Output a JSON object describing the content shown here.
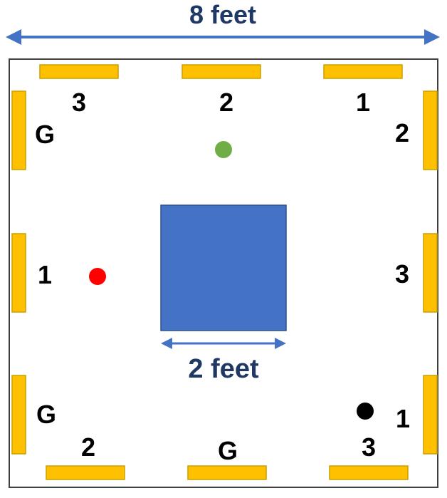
{
  "dimensions": {
    "room_width_label": "8 feet",
    "obstacle_width_label": "2 feet"
  },
  "colors": {
    "arrow": "#4472c4",
    "dimension_text": "#1f3864",
    "obstacle": "#4472c4",
    "bar_fill": "#ffc000",
    "bar_stroke": "#b8860b",
    "label_text": "#000000",
    "dot_green": "#70ad47",
    "dot_red": "#ff0000",
    "dot_black": "#000000"
  },
  "walls": {
    "top": [
      "3",
      "2",
      "1"
    ],
    "bottom": [
      "2",
      "G",
      "3"
    ],
    "left": [
      "G",
      "1",
      "G"
    ],
    "right": [
      "2",
      "3",
      "1"
    ]
  },
  "dots": [
    "green",
    "red",
    "black"
  ]
}
